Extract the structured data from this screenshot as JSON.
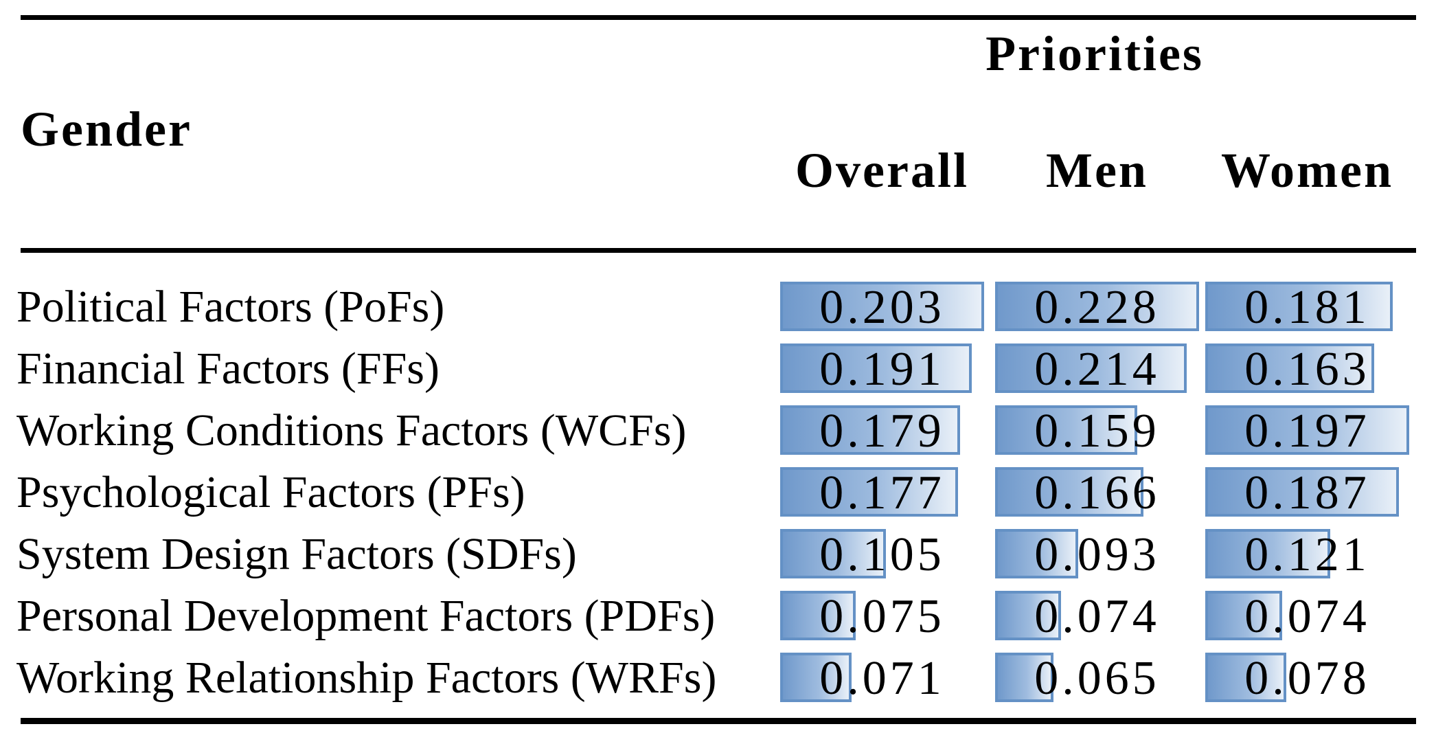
{
  "table": {
    "header": {
      "gender_label": "Gender",
      "priorities_label": "Priorities",
      "columns": [
        "Overall",
        "Men",
        "Women"
      ]
    },
    "rows": [
      {
        "label": "Political Factors (PoFs)",
        "values": [
          "0.203",
          "0.228",
          "0.181"
        ]
      },
      {
        "label": "Financial Factors (FFs)",
        "values": [
          "0.191",
          "0.214",
          "0.163"
        ]
      },
      {
        "label": "Working Conditions Factors (WCFs)",
        "values": [
          "0.179",
          "0.159",
          "0.197"
        ]
      },
      {
        "label": "Psychological Factors (PFs)",
        "values": [
          "0.177",
          "0.166",
          "0.187"
        ]
      },
      {
        "label": "System Design Factors (SDFs)",
        "values": [
          "0.105",
          "0.093",
          "0.121"
        ]
      },
      {
        "label": "Personal Development Factors (PDFs)",
        "values": [
          "0.075",
          "0.074",
          "0.074"
        ]
      },
      {
        "label": "Working Relationship Factors (WRFs)",
        "values": [
          "0.071",
          "0.065",
          "0.078"
        ]
      }
    ],
    "colors": {
      "background": "#FFFFFF",
      "text": "#000000",
      "rule": "#000000",
      "bar_border": "#6491C5",
      "bar_fill_start": "#7099CB",
      "bar_fill_end": "#E9F0F8"
    }
  },
  "chart_data": {
    "type": "bar",
    "title": "Priorities",
    "categories": [
      "Political Factors (PoFs)",
      "Financial Factors (FFs)",
      "Working Conditions Factors (WCFs)",
      "Psychological Factors (PFs)",
      "System Design Factors (SDFs)",
      "Personal Development Factors (PDFs)",
      "Working Relationship Factors (WRFs)"
    ],
    "series": [
      {
        "name": "Overall",
        "values": [
          0.203,
          0.191,
          0.179,
          0.177,
          0.105,
          0.075,
          0.071
        ]
      },
      {
        "name": "Men",
        "values": [
          0.228,
          0.214,
          0.159,
          0.166,
          0.093,
          0.074,
          0.065
        ]
      },
      {
        "name": "Women",
        "values": [
          0.181,
          0.163,
          0.197,
          0.187,
          0.121,
          0.074,
          0.078
        ]
      }
    ],
    "layout": {
      "bar_scaling": "per-column, 0 to column max = full cell width",
      "value_labels": "centered in cell"
    }
  }
}
